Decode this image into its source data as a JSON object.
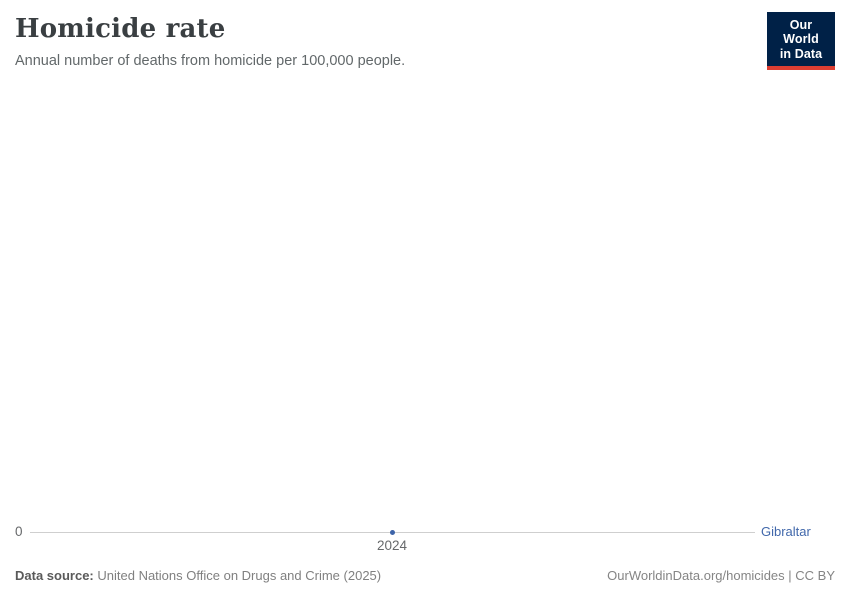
{
  "header": {
    "title": "Homicide rate",
    "subtitle": "Annual number of deaths from homicide per 100,000 people."
  },
  "logo": {
    "line1": "Our World",
    "line2": "in Data"
  },
  "chart": {
    "entity_label": "Gibraltar",
    "x_tick": "2024",
    "y_tick": "0"
  },
  "footer": {
    "source_label": "Data source:",
    "source_value": "United Nations Office on Drugs and Crime (2025)",
    "right_text": "OurWorldinData.org/homicides | CC BY"
  },
  "colors": {
    "accent_blue": "#3d64a9",
    "logo_navy": "#002147",
    "logo_red": "#dc3e32",
    "axis_gray": "#cfcfcf",
    "title_color": "#3a3f42",
    "subtitle_color": "#62686a"
  },
  "chart_data": {
    "type": "line",
    "title": "Homicide rate",
    "subtitle": "Annual number of deaths from homicide per 100,000 people.",
    "series": [
      {
        "name": "Gibraltar",
        "x": [
          2024
        ],
        "values": [
          0
        ]
      }
    ],
    "x_ticks": [
      "2024"
    ],
    "y_ticks": [
      "0"
    ],
    "ylim": [
      0,
      0
    ],
    "grid": false,
    "legend_position": "end-of-line-label"
  }
}
